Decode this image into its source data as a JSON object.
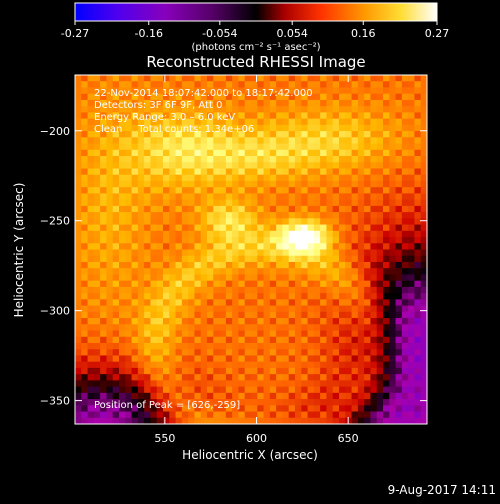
{
  "colorbar": {
    "tick_labels": [
      "-0.27",
      "-0.16",
      "-0.054",
      "0.054",
      "0.16",
      "0.27"
    ],
    "ticks": [
      -0.27,
      -0.16,
      -0.054,
      0.054,
      0.16,
      0.27
    ],
    "range": [
      -0.27,
      0.27
    ],
    "unit_label": "(photons cm⁻² s⁻¹ asec⁻²)"
  },
  "chart_data": {
    "type": "heatmap",
    "title": "Reconstructed RHESSI Image",
    "xlabel": "Heliocentric X (arcsec)",
    "ylabel": "Heliocentric Y (arcsec)",
    "xlim": [
      501,
      693
    ],
    "ylim": [
      -363,
      -169
    ],
    "xticks": [
      550,
      600,
      650
    ],
    "xtick_labels": [
      "550",
      "600",
      "650"
    ],
    "yticks": [
      -200,
      -250,
      -300,
      -350
    ],
    "ytick_labels": [
      "−200",
      "−250",
      "−300",
      "−350"
    ],
    "peak": [
      626,
      -259
    ],
    "peak_value": 0.27,
    "colormap": [
      "#0000ff",
      "#7700cc",
      "#aa00aa",
      "#000000",
      "#cc0000",
      "#ff6600",
      "#ffbb00",
      "#ffff80",
      "#ffffff"
    ],
    "annotations": [
      "22-Nov-2014 18:07:42.000 to 18:17:42.000",
      "Detectors: 3F 6F 9F, Att 0",
      "Energy Range: 3.0 – 6.0 keV",
      "Clean     Total counts: 1.34e+06",
      "Position of Peak = [626,-259]"
    ]
  },
  "footer_date": "9-Aug-2017 14:11"
}
